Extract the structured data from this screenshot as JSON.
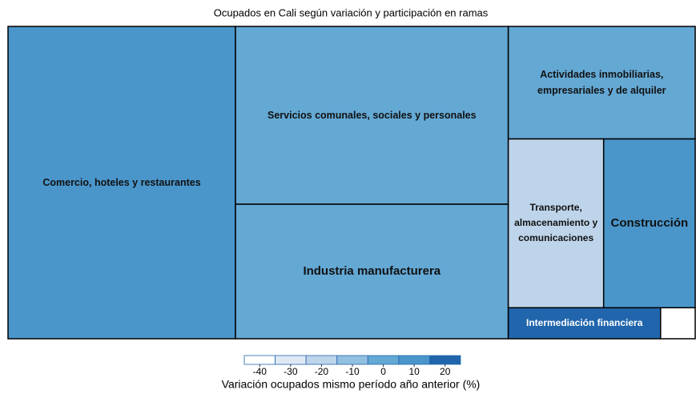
{
  "chart_data": {
    "type": "treemap",
    "title": "Ocupados en Cali según variación y participación en ramas",
    "categories": [
      "Comercio, hoteles y restaurantes",
      "Servicios comunales, sociales y personales",
      "Industria manufacturera",
      "Actividades inmobiliarias, empresariales y de alquiler",
      "Transporte, almacenamiento y comunicaciones",
      "Construcción",
      "Intermediación financiera",
      null
    ],
    "values": [
      33.1,
      22.6,
      17.1,
      9.8,
      7.5,
      7.2,
      2.2,
      0.5
    ],
    "color_values": [
      10,
      0,
      0,
      -2,
      -20,
      10,
      20,
      -42
    ],
    "colorbar": {
      "label": "Variación ocupados mismo período año anterior (%)",
      "lim": [
        -45,
        25
      ],
      "ticks": [
        -40,
        -30,
        -20,
        -10,
        0,
        10,
        20
      ],
      "colors": [
        "#ffffff",
        "#dfe9f4",
        "#bdd4ea",
        "#93bfe0",
        "#64a8d4",
        "#4a96cb",
        "#2166ac"
      ]
    }
  }
}
